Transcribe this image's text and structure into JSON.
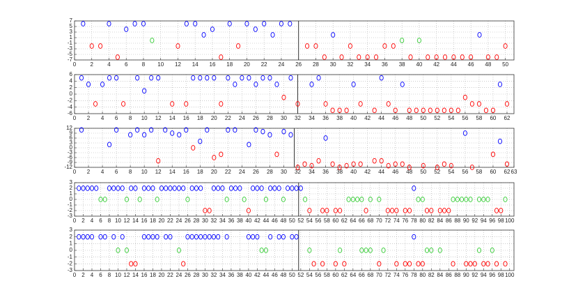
{
  "chart_data": [
    {
      "type": "scatter",
      "xlim": [
        0,
        51
      ],
      "ylim": [
        -7,
        7
      ],
      "xticks": [
        0,
        2,
        4,
        6,
        8,
        10,
        12,
        14,
        16,
        18,
        20,
        22,
        24,
        26,
        28,
        30,
        32,
        34,
        36,
        38,
        40,
        42,
        44,
        46,
        48,
        50
      ],
      "yticks": [
        -7,
        -5,
        -3,
        -1,
        1,
        3,
        5,
        7
      ],
      "grid": true,
      "divider": 26,
      "series": [
        {
          "color": "#0000ff",
          "x": [
            1,
            4,
            6,
            7,
            8,
            13,
            14,
            15,
            16,
            18,
            20,
            21,
            22,
            23,
            24,
            25,
            30,
            47
          ],
          "values": [
            6,
            6,
            4,
            6,
            6,
            6,
            6,
            2,
            4,
            6,
            6,
            4,
            6,
            2,
            6,
            6,
            2,
            2
          ]
        },
        {
          "color": "#ff0000",
          "x": [
            2,
            3,
            5,
            12,
            17,
            19,
            27,
            28,
            29,
            31,
            32,
            33,
            34,
            35,
            36,
            37,
            39,
            41,
            42,
            43,
            44,
            45,
            46,
            48,
            49,
            50
          ],
          "values": [
            -2,
            -2,
            -6,
            -2,
            -6,
            -2,
            -2,
            -2,
            -6,
            -6,
            -2,
            -6,
            -6,
            -6,
            -2,
            -2,
            -6,
            -6,
            -6,
            -6,
            -6,
            -6,
            -6,
            -6,
            -6,
            -2
          ]
        },
        {
          "color": "#33cc33",
          "x": [
            9,
            38,
            40
          ],
          "values": [
            0,
            0,
            0
          ]
        }
      ]
    },
    {
      "type": "scatter",
      "xlim": [
        0,
        63
      ],
      "ylim": [
        -6,
        6
      ],
      "xticks": [
        0,
        2,
        4,
        6,
        8,
        10,
        12,
        14,
        16,
        18,
        20,
        22,
        24,
        26,
        28,
        30,
        32,
        34,
        36,
        38,
        40,
        42,
        44,
        46,
        48,
        50,
        52,
        54,
        56,
        58,
        60,
        62
      ],
      "yticks": [
        -6,
        -4,
        -2,
        0,
        2,
        4,
        6
      ],
      "grid": true,
      "divider": 32,
      "series": [
        {
          "color": "#0000ff",
          "x": [
            1,
            2,
            4,
            5,
            6,
            9,
            10,
            11,
            12,
            17,
            18,
            19,
            20,
            22,
            23,
            24,
            25,
            26,
            27,
            28,
            29,
            31,
            34,
            35,
            40,
            44,
            47,
            61
          ],
          "values": [
            5,
            3,
            3,
            5,
            5,
            5,
            1,
            5,
            5,
            5,
            5,
            5,
            5,
            5,
            3,
            5,
            5,
            3,
            5,
            5,
            3,
            5,
            3,
            5,
            3,
            5,
            3,
            3
          ]
        },
        {
          "color": "#ff0000",
          "x": [
            3,
            7,
            14,
            16,
            21,
            30,
            32,
            36,
            37,
            38,
            39,
            41,
            43,
            45,
            46,
            48,
            49,
            50,
            51,
            52,
            53,
            54,
            55,
            56,
            57,
            58,
            59,
            60,
            62
          ],
          "values": [
            -3,
            -3,
            -3,
            -3,
            -3,
            -1,
            -3,
            -3,
            -5,
            -5,
            -5,
            -3,
            -5,
            -3,
            -5,
            -5,
            -5,
            -5,
            -5,
            -5,
            -5,
            -5,
            -5,
            -1,
            -3,
            -3,
            -5,
            -5,
            -3
          ]
        }
      ]
    },
    {
      "type": "scatter",
      "xlim": [
        0,
        63
      ],
      "ylim": [
        -12,
        12
      ],
      "xticks": [
        0,
        2,
        4,
        6,
        8,
        10,
        12,
        14,
        16,
        18,
        20,
        22,
        24,
        26,
        28,
        30,
        32,
        34,
        36,
        38,
        40,
        42,
        44,
        46,
        48,
        50,
        52,
        54,
        56,
        58,
        60,
        62,
        63
      ],
      "yticks": [
        -12,
        -9,
        -6,
        -3,
        0,
        3,
        6,
        9,
        12
      ],
      "grid": true,
      "divider": 31.5,
      "series": [
        {
          "color": "#0000ff",
          "x": [
            1,
            5,
            6,
            8,
            9,
            10,
            11,
            13,
            14,
            15,
            16,
            18,
            19,
            22,
            23,
            25,
            26,
            27,
            28,
            30,
            31,
            36,
            56,
            61
          ],
          "values": [
            11,
            2,
            11,
            8,
            11,
            8,
            11,
            11,
            9,
            8,
            11,
            4,
            11,
            11,
            11,
            2,
            11,
            10,
            8,
            10,
            8,
            6,
            9,
            4
          ]
        },
        {
          "color": "#ff0000",
          "x": [
            12,
            17,
            20,
            21,
            29,
            32,
            33,
            34,
            35,
            37,
            38,
            39,
            40,
            41,
            43,
            44,
            45,
            46,
            47,
            48,
            50,
            52,
            53,
            54,
            57,
            60,
            62
          ],
          "values": [
            -8,
            0,
            -6,
            -4,
            -4,
            -12,
            -10,
            -11,
            -8,
            -10,
            -12,
            -11,
            -10,
            -10,
            -8,
            -8,
            -11,
            -10,
            -10,
            -12,
            -11,
            -12,
            -10,
            -11,
            -12,
            -4,
            -10
          ]
        }
      ]
    },
    {
      "type": "scatter",
      "xlim": [
        0,
        101
      ],
      "ylim": [
        -3,
        3
      ],
      "xticks": [
        0,
        2,
        4,
        6,
        8,
        10,
        12,
        14,
        16,
        18,
        20,
        22,
        24,
        26,
        28,
        30,
        32,
        34,
        36,
        38,
        40,
        42,
        44,
        46,
        48,
        50,
        52,
        54,
        56,
        58,
        60,
        62,
        64,
        66,
        68,
        70,
        72,
        74,
        76,
        78,
        80,
        82,
        84,
        86,
        88,
        90,
        92,
        94,
        96,
        98,
        100
      ],
      "yticks": [
        -3,
        -2,
        -1,
        0,
        1,
        2,
        3
      ],
      "grid": true,
      "divider": 51.5,
      "series": [
        {
          "color": "#0000ff",
          "x": [
            1,
            2,
            3,
            4,
            5,
            8,
            9,
            10,
            11,
            13,
            14,
            16,
            17,
            18,
            20,
            21,
            22,
            23,
            24,
            25,
            27,
            28,
            29,
            32,
            33,
            34,
            36,
            37,
            38,
            41,
            42,
            43,
            45,
            46,
            47,
            49,
            50,
            51,
            52,
            78
          ],
          "values": [
            2,
            2,
            2,
            2,
            2,
            2,
            2,
            2,
            2,
            2,
            2,
            2,
            2,
            2,
            2,
            2,
            2,
            2,
            2,
            2,
            2,
            2,
            2,
            2,
            2,
            2,
            2,
            2,
            2,
            2,
            2,
            2,
            2,
            2,
            2,
            2,
            2,
            2,
            2,
            2
          ]
        },
        {
          "color": "#33cc33",
          "x": [
            6,
            7,
            12,
            15,
            19,
            26,
            35,
            39,
            44,
            48,
            53,
            63,
            64,
            65,
            66,
            68,
            70,
            79,
            80,
            87,
            88,
            89,
            90,
            91,
            93,
            94,
            95,
            99
          ],
          "values": [
            0,
            0,
            0,
            0,
            0,
            0,
            0,
            0,
            0,
            0,
            0,
            0,
            0,
            0,
            0,
            0,
            0,
            0,
            0,
            0,
            0,
            0,
            0,
            0,
            0,
            0,
            0,
            0
          ]
        },
        {
          "color": "#ff0000",
          "x": [
            30,
            31,
            40,
            54,
            57,
            58,
            60,
            61,
            67,
            72,
            73,
            74,
            76,
            77,
            81,
            82,
            84,
            85,
            86,
            97,
            98
          ],
          "values": [
            -2,
            -2,
            -2,
            -2,
            -2,
            -2,
            -2,
            -2,
            -2,
            -2,
            -2,
            -2,
            -2,
            -2,
            -2,
            -2,
            -2,
            -2,
            -2,
            -2,
            -2
          ]
        }
      ]
    },
    {
      "type": "scatter",
      "xlim": [
        0,
        101
      ],
      "ylim": [
        -3,
        3
      ],
      "xticks": [
        0,
        2,
        4,
        6,
        8,
        10,
        12,
        14,
        16,
        18,
        20,
        22,
        24,
        26,
        28,
        30,
        32,
        34,
        36,
        38,
        40,
        42,
        44,
        46,
        48,
        50,
        52,
        54,
        56,
        58,
        60,
        62,
        64,
        66,
        68,
        70,
        72,
        74,
        76,
        78,
        80,
        82,
        84,
        86,
        88,
        90,
        92,
        94,
        96,
        98,
        100
      ],
      "yticks": [
        -3,
        -2,
        -1,
        0,
        1,
        2,
        3
      ],
      "grid": true,
      "divider": 51.5,
      "series": [
        {
          "color": "#0000ff",
          "x": [
            1,
            2,
            3,
            4,
            6,
            7,
            9,
            11,
            16,
            17,
            18,
            19,
            21,
            22,
            26,
            27,
            28,
            29,
            30,
            31,
            32,
            33,
            35,
            40,
            41,
            42,
            45,
            47,
            48,
            50,
            51,
            78
          ],
          "values": [
            2,
            2,
            2,
            2,
            2,
            2,
            2,
            2,
            2,
            2,
            2,
            2,
            2,
            2,
            2,
            2,
            2,
            2,
            2,
            2,
            2,
            2,
            2,
            2,
            2,
            2,
            2,
            2,
            2,
            2,
            2,
            2
          ]
        },
        {
          "color": "#33cc33",
          "x": [
            10,
            12,
            24,
            43,
            44,
            54,
            61,
            66,
            67,
            68,
            71,
            81,
            82,
            84,
            93,
            96
          ],
          "values": [
            0,
            0,
            0,
            0,
            0,
            0,
            0,
            0,
            0,
            0,
            0,
            0,
            0,
            0,
            0,
            0
          ]
        },
        {
          "color": "#ff0000",
          "x": [
            13,
            14,
            25,
            55,
            57,
            60,
            62,
            70,
            74,
            76,
            77,
            79,
            80,
            87,
            90,
            91,
            92,
            94,
            95,
            97,
            99
          ],
          "values": [
            -2,
            -2,
            -2,
            -2,
            -2,
            -2,
            -2,
            -2,
            -2,
            -2,
            -2,
            -2,
            -2,
            -2,
            -2,
            -2,
            -2,
            -2,
            -2,
            -2,
            -2
          ]
        }
      ]
    }
  ]
}
